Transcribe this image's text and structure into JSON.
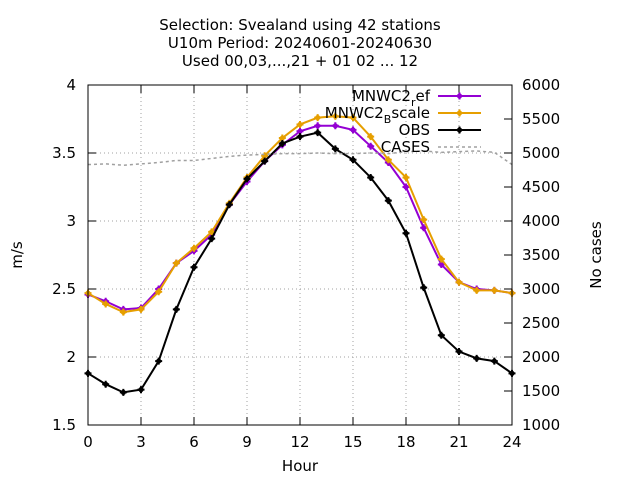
{
  "chart_data": {
    "type": "line",
    "title_lines": [
      "Selection: Svealand using    42 stations",
      "U10m   Period: 20240601-20240630",
      "Used 00,03,...,21 + 01 02 ... 12"
    ],
    "xlabel": "Hour",
    "ylabel": "m/s",
    "y2label": "No cases",
    "xlim": [
      0,
      24
    ],
    "ylim": [
      1.5,
      4
    ],
    "y2lim": [
      1000,
      6000
    ],
    "x_ticks": [
      0,
      3,
      6,
      9,
      12,
      15,
      18,
      21,
      24
    ],
    "y_ticks": [
      1.5,
      2,
      2.5,
      3,
      3.5,
      4
    ],
    "y2_ticks": [
      1000,
      1500,
      2000,
      2500,
      3000,
      3500,
      4000,
      4500,
      5000,
      5500,
      6000
    ],
    "grid": true,
    "legend_position": "top-right",
    "x": [
      0,
      1,
      2,
      3,
      4,
      5,
      6,
      7,
      8,
      9,
      10,
      11,
      12,
      13,
      14,
      15,
      16,
      17,
      18,
      19,
      20,
      21,
      22,
      23,
      24
    ],
    "series": [
      {
        "name": "MNWC2_ref",
        "legend_parts": [
          "MNWC2",
          "r",
          "ef"
        ],
        "color": "#9400d3",
        "marker": "plus",
        "axis": "y",
        "values": [
          2.46,
          2.41,
          2.35,
          2.36,
          2.5,
          2.69,
          2.78,
          2.9,
          3.12,
          3.29,
          3.44,
          3.56,
          3.66,
          3.7,
          3.7,
          3.67,
          3.55,
          3.43,
          3.25,
          2.95,
          2.68,
          2.55,
          2.5,
          2.49,
          2.47
        ]
      },
      {
        "name": "MNWC2_Bscale",
        "legend_parts": [
          "MNWC2",
          "B",
          "scale"
        ],
        "color": "#e69f00",
        "marker": "plus",
        "axis": "y",
        "values": [
          2.47,
          2.39,
          2.33,
          2.35,
          2.48,
          2.69,
          2.8,
          2.92,
          3.13,
          3.32,
          3.48,
          3.61,
          3.71,
          3.76,
          3.77,
          3.76,
          3.62,
          3.45,
          3.32,
          3.01,
          2.72,
          2.55,
          2.49,
          2.49,
          2.47
        ]
      },
      {
        "name": "OBS",
        "legend_parts": [
          "OBS"
        ],
        "color": "#000000",
        "marker": "plus",
        "axis": "y",
        "values": [
          1.88,
          1.8,
          1.74,
          1.76,
          1.97,
          2.35,
          2.66,
          2.87,
          3.12,
          3.31,
          3.44,
          3.57,
          3.62,
          3.65,
          3.53,
          3.45,
          3.32,
          3.15,
          2.91,
          2.51,
          2.16,
          2.04,
          1.99,
          1.97,
          1.88
        ]
      },
      {
        "name": "CASES",
        "legend_parts": [
          "CASES"
        ],
        "color": "#a0a0a0",
        "marker": "none",
        "dashed": true,
        "axis": "y2",
        "values": [
          4830,
          4840,
          4820,
          4840,
          4860,
          4890,
          4890,
          4920,
          4950,
          4970,
          4980,
          4990,
          4990,
          5000,
          4990,
          4990,
          5000,
          4990,
          5020,
          5030,
          5010,
          5020,
          5030,
          5010,
          4830
        ]
      }
    ]
  }
}
